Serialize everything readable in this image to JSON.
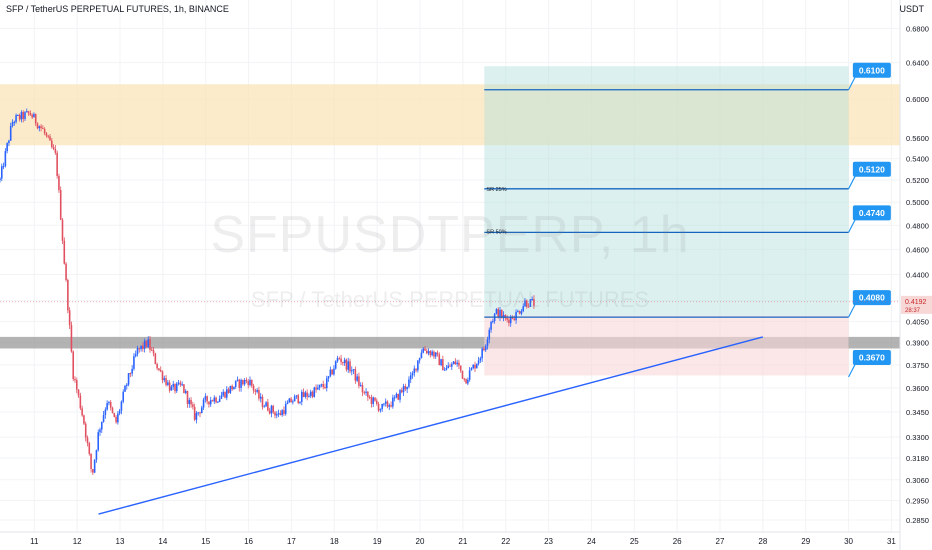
{
  "header": {
    "title": "SFP / TetherUS PERPETUAL FUTURES, 1h, BINANCE",
    "currency": "USDT"
  },
  "watermark": {
    "symbol": "SFPUSDTPERP, 1h",
    "description": "SFP / TetherUS PERPETUAL FUTURES"
  },
  "colors": {
    "up": "#2962ff",
    "down": "#e05060",
    "trendline": "#2962ff",
    "level_line": "#1565c0",
    "callout_bg": "#2196f3",
    "supply_zone": "#fbe3b3",
    "demand_zone": "#8a8a8a",
    "target_zone": "#b2dfdb",
    "stop_zone": "#f8d7d7"
  },
  "chart_data": {
    "type": "candlestick",
    "x_axis": {
      "ticks": [
        "11",
        "12",
        "13",
        "14",
        "15",
        "16",
        "17",
        "18",
        "19",
        "20",
        "21",
        "22",
        "23",
        "24",
        "25",
        "26",
        "27",
        "28",
        "29",
        "30",
        "31"
      ],
      "range": [
        10.2,
        31.2
      ]
    },
    "y_axis": {
      "scale": "log",
      "ticks": [
        "0.6800",
        "0.6400",
        "0.6000",
        "0.5600",
        "0.5400",
        "0.5200",
        "0.5000",
        "0.4800",
        "0.4600",
        "0.4400",
        "0.4200",
        "0.4050",
        "0.3900",
        "0.3750",
        "0.3600",
        "0.3450",
        "0.3300",
        "0.3180",
        "0.3060",
        "0.2950",
        "0.2850"
      ],
      "range": [
        0.279,
        0.715
      ]
    },
    "last_price": {
      "value": "0.4192",
      "countdown": "28:37"
    },
    "anchors": [
      [
        10.2,
        0.52
      ],
      [
        10.5,
        0.578
      ],
      [
        10.9,
        0.585
      ],
      [
        11.2,
        0.568
      ],
      [
        11.5,
        0.542
      ],
      [
        11.7,
        0.45
      ],
      [
        11.9,
        0.37
      ],
      [
        12.15,
        0.34
      ],
      [
        12.35,
        0.308
      ],
      [
        12.5,
        0.333
      ],
      [
        12.7,
        0.352
      ],
      [
        12.9,
        0.338
      ],
      [
        13.15,
        0.362
      ],
      [
        13.4,
        0.384
      ],
      [
        13.65,
        0.39
      ],
      [
        13.9,
        0.372
      ],
      [
        14.2,
        0.359
      ],
      [
        14.45,
        0.361
      ],
      [
        14.75,
        0.342
      ],
      [
        15.0,
        0.352
      ],
      [
        15.3,
        0.354
      ],
      [
        15.7,
        0.362
      ],
      [
        16.0,
        0.365
      ],
      [
        16.3,
        0.351
      ],
      [
        16.7,
        0.343
      ],
      [
        17.0,
        0.352
      ],
      [
        17.4,
        0.356
      ],
      [
        17.8,
        0.362
      ],
      [
        18.1,
        0.38
      ],
      [
        18.4,
        0.372
      ],
      [
        18.7,
        0.356
      ],
      [
        19.1,
        0.347
      ],
      [
        19.4,
        0.352
      ],
      [
        19.8,
        0.366
      ],
      [
        20.05,
        0.386
      ],
      [
        20.3,
        0.383
      ],
      [
        20.6,
        0.372
      ],
      [
        20.85,
        0.377
      ],
      [
        21.05,
        0.365
      ],
      [
        21.3,
        0.376
      ],
      [
        21.5,
        0.386
      ],
      [
        21.65,
        0.405
      ],
      [
        21.8,
        0.412
      ],
      [
        22.0,
        0.406
      ],
      [
        22.25,
        0.41
      ],
      [
        22.45,
        0.419
      ],
      [
        22.7,
        0.418
      ]
    ],
    "zones": [
      {
        "type": "supply",
        "y": [
          0.553,
          0.616
        ]
      },
      {
        "type": "demand",
        "y": [
          0.386,
          0.394
        ]
      },
      {
        "type": "target",
        "x": [
          21.5,
          30.0
        ],
        "y": [
          0.409,
          0.636
        ]
      },
      {
        "type": "stop",
        "x": [
          21.5,
          30.0
        ],
        "y": [
          0.368,
          0.409
        ]
      }
    ],
    "trendline": {
      "from": [
        12.5,
        0.288
      ],
      "to": [
        28.0,
        0.394
      ]
    },
    "levels": [
      {
        "value": 0.61,
        "label": "0.6100"
      },
      {
        "value": 0.512,
        "label": "0.5120"
      },
      {
        "value": 0.474,
        "label": "0.4740"
      },
      {
        "value": 0.408,
        "label": "0.4080"
      },
      {
        "value": 0.367,
        "label": "0.3670"
      }
    ],
    "annotations": [
      {
        "text": "SR 25%",
        "x": 21.55,
        "y": 0.51
      },
      {
        "text": "SR 50%",
        "x": 21.55,
        "y": 0.473
      }
    ]
  }
}
